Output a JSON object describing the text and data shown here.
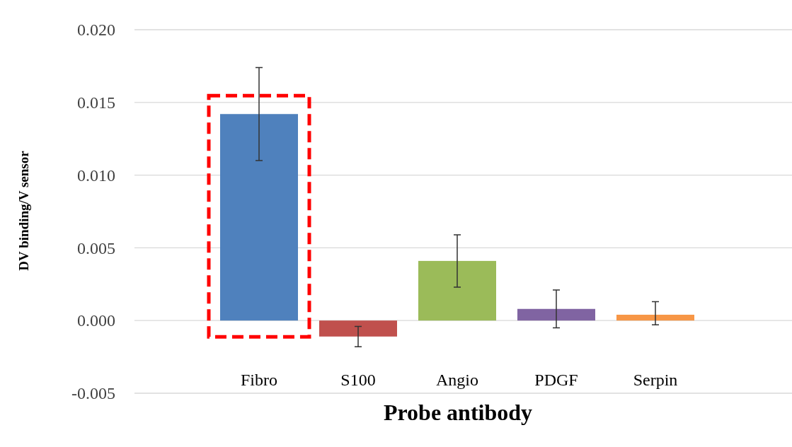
{
  "chart_data": {
    "type": "bar",
    "xlabel": "Probe antibody",
    "ylabel": "DV binding/V sensor",
    "categories": [
      "Fibro",
      "S100",
      "Angio",
      "PDGF",
      "Serpin"
    ],
    "values": [
      0.0142,
      -0.0011,
      0.0041,
      0.0008,
      0.0004
    ],
    "colors": [
      "#4f81bd",
      "#c0504d",
      "#9bbb59",
      "#8064a2",
      "#f79646"
    ],
    "errors": [
      [
        0.011,
        0.0174
      ],
      [
        -0.0018,
        -0.0004
      ],
      [
        0.0023,
        0.0059
      ],
      [
        -0.0005,
        0.0021
      ],
      [
        -0.0003,
        0.0013
      ]
    ],
    "ylim": [
      -0.005,
      0.02
    ],
    "yticks": [
      {
        "value": -0.005,
        "label": "-0.005"
      },
      {
        "value": 0,
        "label": "0.000"
      },
      {
        "value": 0.005,
        "label": "0.005"
      },
      {
        "value": 0.01,
        "label": "0.010"
      },
      {
        "value": 0.015,
        "label": "0.015"
      },
      {
        "value": 0.02,
        "label": "0.020"
      }
    ],
    "grid": "y"
  }
}
